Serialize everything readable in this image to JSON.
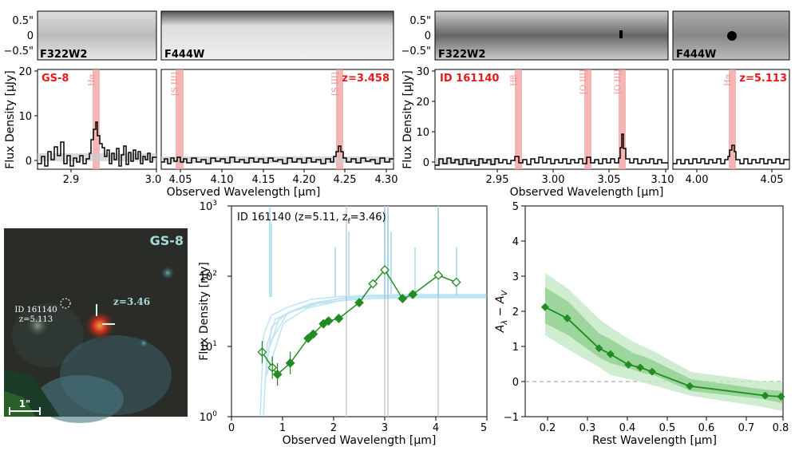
{
  "top_left": {
    "img_ticks": [
      "0.5\"",
      "0",
      "−0.5\""
    ],
    "filter_left": "F322W2",
    "filter_right": "F444W",
    "galaxy": "GS-8",
    "redshift": "z=3.458",
    "lines": [
      "Hα",
      "[S III]",
      "[S III]"
    ],
    "xticks_left": [
      "2.9",
      "3.0"
    ],
    "xticks_right": [
      "4.05",
      "4.10",
      "4.15",
      "4.20",
      "4.25",
      "4.30"
    ],
    "yticks": [
      "0",
      "10",
      "20"
    ],
    "ylabel": "Flux Density [μJy]",
    "xlabel": "Observed Wavelength [μm]"
  },
  "top_right": {
    "img_ticks": [
      "0.5\"",
      "0",
      "−0.5\""
    ],
    "filter_left": "F322W2",
    "filter_right": "F444W",
    "galaxy": "ID 161140",
    "redshift": "z=5.113",
    "lines": [
      "Hβ",
      "[O III]",
      "[O III]",
      "Hα"
    ],
    "xticks_left": [
      "2.95",
      "3.00",
      "3.05",
      "3.10"
    ],
    "xticks_right": [
      "4.00",
      "4.05"
    ],
    "yticks": [
      "0",
      "10",
      "20",
      "30"
    ],
    "ylabel": "Flux Density [μJy]",
    "xlabel": "Observed Wavelength [μm]"
  },
  "image_panel": {
    "title": "GS-8",
    "main_z": "z=3.46",
    "companion_id": "ID 161140",
    "companion_z": "z=5.113",
    "scale": "1\""
  },
  "sed": {
    "title_prefix": "ID 161140 (z=5.11, z",
    "title_sub": "f",
    "title_suffix": "=3.46)",
    "ylabel": "Flux Density [nJy]",
    "xlabel": "Observed Wavelength [μm]",
    "xticks": [
      "0",
      "1",
      "2",
      "3",
      "4",
      "5"
    ],
    "yticks": [
      "10",
      "10",
      "10",
      "10"
    ],
    "yexp": [
      "0",
      "1",
      "2",
      "3"
    ]
  },
  "attn": {
    "ylabel_main": "A",
    "ylabel_sub1": "λ",
    "ylabel_mid": " − A",
    "ylabel_sub2": "V",
    "xlabel": "Rest Wavelength [μm]",
    "xticks": [
      "0.2",
      "0.3",
      "0.4",
      "0.5",
      "0.6",
      "0.7",
      "0.8"
    ],
    "yticks": [
      "−1",
      "0",
      "1",
      "2",
      "3",
      "4",
      "5"
    ]
  },
  "chart_data": [
    {
      "type": "scatter",
      "panel": "SED",
      "xlim": [
        0,
        5
      ],
      "ylim": [
        1,
        1000
      ],
      "ylog": true,
      "series": [
        {
          "name": "detected",
          "x": [
            0.9,
            1.15,
            1.5,
            1.6,
            1.8,
            1.9,
            2.1,
            2.5,
            3.35,
            3.55
          ],
          "y": [
            4,
            5.8,
            13,
            15,
            21,
            23,
            25,
            42,
            48,
            55
          ]
        },
        {
          "name": "open",
          "x": [
            0.6,
            0.8,
            2.77,
            3.0,
            4.05,
            4.4
          ],
          "y": [
            8.3,
            5,
            78,
            123,
            103,
            82
          ]
        }
      ]
    },
    {
      "type": "line",
      "panel": "attenuation",
      "xlim": [
        0.15,
        0.8
      ],
      "ylim": [
        -1,
        5
      ],
      "x": [
        0.2,
        0.256,
        0.336,
        0.365,
        0.41,
        0.44,
        0.47,
        0.565,
        0.755,
        0.795
      ],
      "y": [
        2.12,
        1.8,
        0.95,
        0.78,
        0.48,
        0.4,
        0.28,
        -0.13,
        -0.4,
        -0.43
      ]
    }
  ]
}
